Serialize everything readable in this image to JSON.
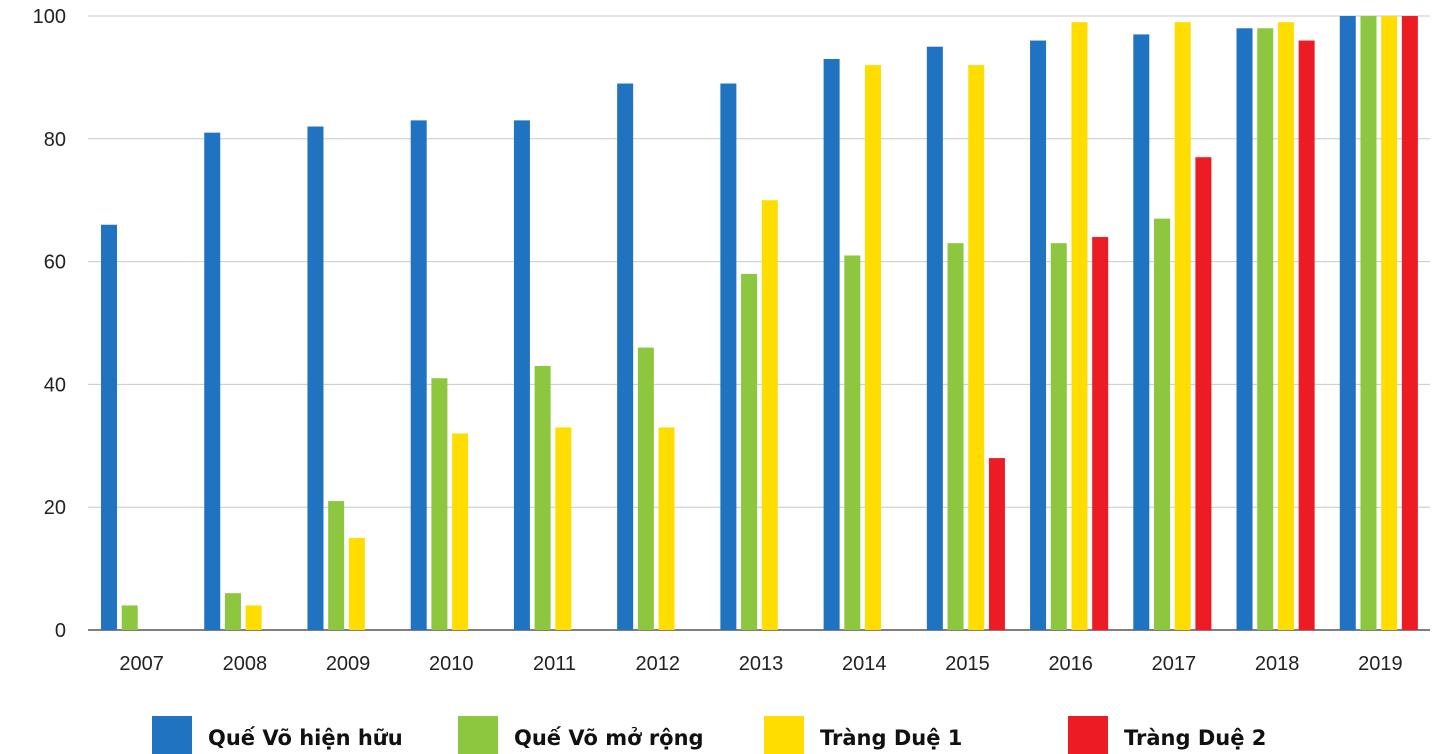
{
  "chart_data": {
    "type": "bar",
    "title": "",
    "xlabel": "",
    "ylabel": "",
    "ylim": [
      0,
      100
    ],
    "yticks": [
      0,
      20,
      40,
      60,
      80,
      100
    ],
    "grid": true,
    "legend_position": "bottom",
    "categories": [
      "2007",
      "2008",
      "2009",
      "2010",
      "2011",
      "2012",
      "2013",
      "2014",
      "2015",
      "2016",
      "2017",
      "2018",
      "2019"
    ],
    "series": [
      {
        "name": "Quế Võ hiện hữu",
        "color": "#1f73c0",
        "values": [
          66,
          81,
          82,
          83,
          83,
          89,
          89,
          93,
          95,
          96,
          97,
          98,
          100
        ]
      },
      {
        "name": "Quế Võ mở rộng",
        "color": "#8dc63f",
        "values": [
          4,
          6,
          21,
          41,
          43,
          46,
          58,
          61,
          63,
          63,
          67,
          98,
          100
        ]
      },
      {
        "name": "Tràng Duệ 1",
        "color": "#ffdd00",
        "values": [
          null,
          4,
          15,
          32,
          33,
          33,
          70,
          92,
          92,
          99,
          99,
          99,
          100
        ]
      },
      {
        "name": "Tràng Duệ 2",
        "color": "#ed1c24",
        "values": [
          null,
          null,
          null,
          null,
          null,
          null,
          null,
          null,
          28,
          64,
          77,
          96,
          100
        ]
      }
    ]
  }
}
